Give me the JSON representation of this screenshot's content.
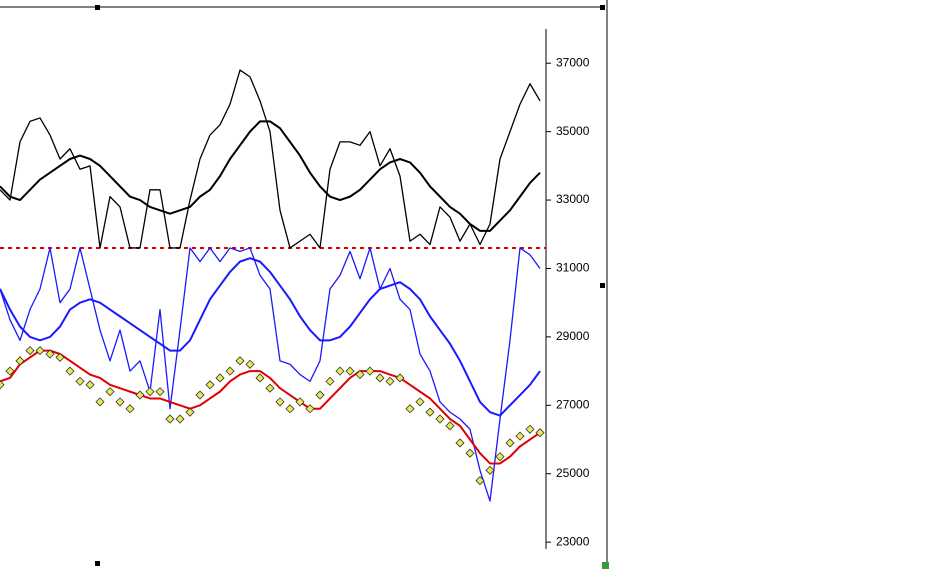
{
  "chart_data": {
    "type": "line",
    "ylim": [
      22800,
      38000
    ],
    "yticks": [
      23000,
      25000,
      27000,
      29000,
      31000,
      33000,
      35000,
      37000
    ],
    "hline": 31600,
    "hline_color": "#e00000",
    "series": [
      {
        "color": "#000000",
        "width": 1.3,
        "values": [
          33300,
          33000,
          34700,
          35300,
          35400,
          34900,
          34200,
          34500,
          33900,
          34000,
          31600,
          33100,
          32800,
          31600,
          31600,
          33300,
          33300,
          31600,
          31600,
          33000,
          34200,
          34900,
          35200,
          35800,
          36800,
          36600,
          35900,
          35000,
          32700,
          31600,
          31800,
          32000,
          31600,
          33900,
          34700,
          34700,
          34600,
          35000,
          34000,
          34500,
          33700,
          31800,
          32000,
          31700,
          32800,
          32500,
          31800,
          32300,
          31700,
          32300,
          34200,
          35000,
          35800,
          36400,
          35900
        ]
      },
      {
        "color": "#000000",
        "width": 2,
        "values": [
          33400,
          33100,
          33000,
          33300,
          33600,
          33800,
          34000,
          34200,
          34300,
          34200,
          34000,
          33700,
          33400,
          33100,
          33000,
          32800,
          32700,
          32600,
          32700,
          32800,
          33100,
          33300,
          33700,
          34200,
          34600,
          35000,
          35300,
          35300,
          35100,
          34700,
          34300,
          33800,
          33400,
          33100,
          33000,
          33100,
          33300,
          33600,
          33900,
          34100,
          34200,
          34100,
          33800,
          33400,
          33100,
          32800,
          32600,
          32300,
          32100,
          32100,
          32400,
          32700,
          33100,
          33500,
          33800
        ]
      },
      {
        "color": "#1a1aff",
        "width": 1.3,
        "values": [
          30400,
          29500,
          28900,
          29800,
          30400,
          31600,
          30000,
          30400,
          31600,
          30400,
          29200,
          28300,
          29200,
          28000,
          28300,
          27400,
          29800,
          26900,
          29200,
          31600,
          31200,
          31600,
          31200,
          31600,
          31500,
          31600,
          30800,
          30400,
          28300,
          28200,
          27900,
          27700,
          28300,
          30400,
          30800,
          31500,
          30700,
          31600,
          30400,
          31000,
          30100,
          29800,
          28500,
          28000,
          27100,
          26800,
          26600,
          26300,
          25100,
          24200,
          26600,
          28900,
          31600,
          31400,
          31000
        ]
      },
      {
        "color": "#1a1aff",
        "width": 2,
        "values": [
          30400,
          29800,
          29300,
          29000,
          28900,
          29000,
          29300,
          29800,
          30000,
          30100,
          30000,
          29800,
          29600,
          29400,
          29200,
          29000,
          28800,
          28600,
          28600,
          28900,
          29500,
          30100,
          30500,
          30900,
          31200,
          31300,
          31200,
          30900,
          30500,
          30100,
          29600,
          29200,
          28900,
          28900,
          29000,
          29300,
          29700,
          30100,
          30400,
          30500,
          30600,
          30400,
          30100,
          29600,
          29200,
          28800,
          28300,
          27700,
          27100,
          26800,
          26700,
          27000,
          27300,
          27600,
          28000
        ]
      },
      {
        "color": "#e00000",
        "width": 2,
        "values": [
          27700,
          27800,
          28200,
          28400,
          28600,
          28600,
          28500,
          28300,
          28100,
          27900,
          27800,
          27600,
          27500,
          27400,
          27300,
          27200,
          27200,
          27100,
          27000,
          26900,
          27000,
          27200,
          27400,
          27700,
          27900,
          28000,
          28000,
          27800,
          27500,
          27300,
          27100,
          26900,
          26900,
          27200,
          27500,
          27800,
          28000,
          28000,
          28000,
          27900,
          27800,
          27600,
          27400,
          27200,
          26900,
          26600,
          26400,
          26000,
          25600,
          25300,
          25300,
          25500,
          25800,
          26000,
          26200
        ]
      },
      {
        "color": "#e8e85a",
        "marker": "diamond",
        "values": [
          27600,
          28000,
          28300,
          28600,
          28600,
          28500,
          28400,
          28000,
          27700,
          27600,
          27100,
          27400,
          27100,
          26900,
          27300,
          27400,
          27400,
          26600,
          26600,
          26800,
          27300,
          27600,
          27800,
          28000,
          28300,
          28200,
          27800,
          27500,
          27100,
          26900,
          27100,
          26900,
          27300,
          27700,
          28000,
          28000,
          27900,
          28000,
          27800,
          27700,
          27800,
          26900,
          27100,
          26800,
          26600,
          26400,
          25900,
          25600,
          24800,
          25100,
          25500,
          25900,
          26100,
          26300,
          26200
        ]
      }
    ]
  }
}
